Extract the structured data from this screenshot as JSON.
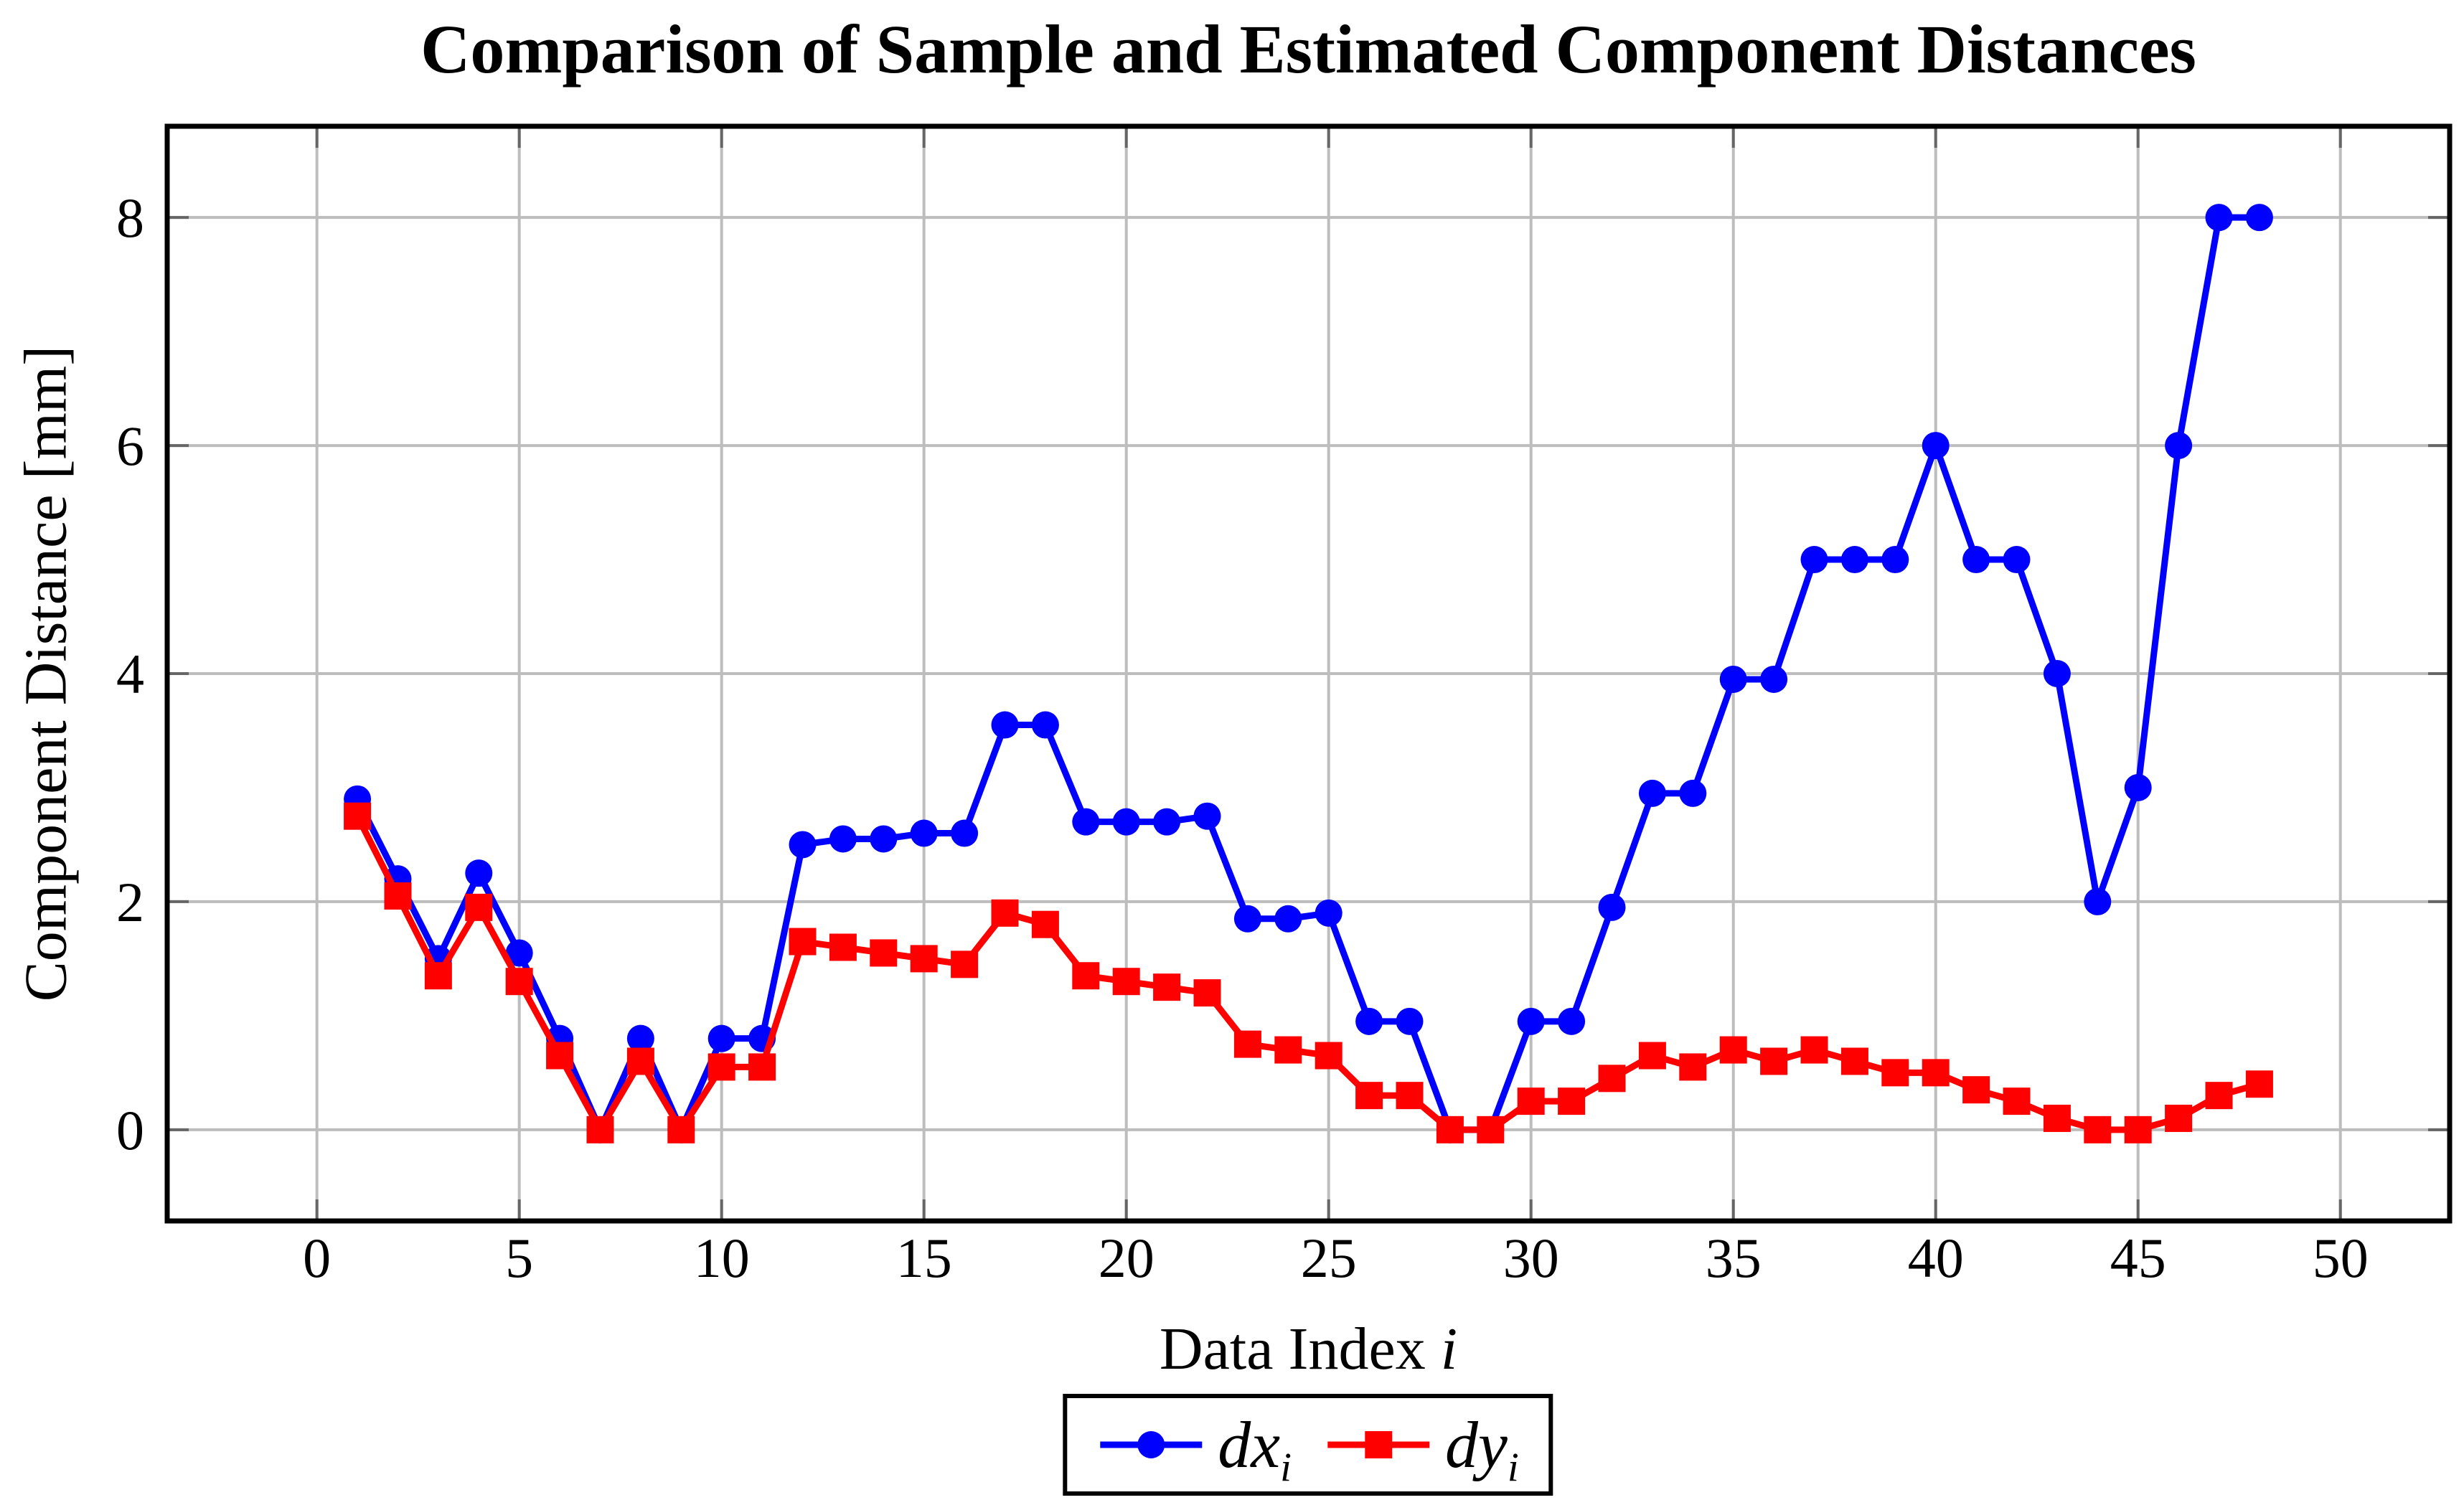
{
  "title": "Comparison of Sample and Estimated Component Distances",
  "axes": {
    "x_label_text": "Data Index",
    "x_label_var": "i",
    "y_label": "Component Distance [mm]"
  },
  "legend": [
    {
      "name": "dx",
      "sub": "i",
      "color": "#0000ff",
      "marker": "circle"
    },
    {
      "name": "dy",
      "sub": "i",
      "color": "#ff0000",
      "marker": "square"
    }
  ],
  "colors": {
    "background": "#ffffff",
    "grid": "#bdbdbd",
    "frame": "#000000",
    "tick": "#666666",
    "blue_series": "#0000ff",
    "red_series": "#ff0000"
  },
  "chart_data": {
    "type": "line",
    "title": "Comparison of Sample and Estimated Component Distances",
    "xlabel": "Data Index i",
    "ylabel": "Component Distance [mm]",
    "grid": true,
    "legend_position": "below",
    "xlim": [
      -3.7,
      52.7
    ],
    "ylim": [
      -0.8,
      8.8
    ],
    "x_ticks": [
      0,
      5,
      10,
      15,
      20,
      25,
      30,
      35,
      40,
      45,
      50
    ],
    "y_ticks": [
      0,
      2,
      4,
      6,
      8
    ],
    "x": [
      1,
      2,
      3,
      4,
      5,
      6,
      7,
      8,
      9,
      10,
      11,
      12,
      13,
      14,
      15,
      16,
      17,
      18,
      19,
      20,
      21,
      22,
      23,
      24,
      25,
      26,
      27,
      28,
      29,
      30,
      31,
      32,
      33,
      34,
      35,
      36,
      37,
      38,
      39,
      40,
      41,
      42,
      43,
      44,
      45,
      46,
      47,
      48
    ],
    "series": [
      {
        "name": "dx_i",
        "color": "#0000ff",
        "marker": "circle",
        "values": [
          2.9,
          2.2,
          1.5,
          2.25,
          1.55,
          0.8,
          0.0,
          0.8,
          0.0,
          0.8,
          0.8,
          2.5,
          2.55,
          2.55,
          2.6,
          2.6,
          3.55,
          3.55,
          2.7,
          2.7,
          2.7,
          2.75,
          1.85,
          1.85,
          1.9,
          0.95,
          0.95,
          0.0,
          0.0,
          0.95,
          0.95,
          1.95,
          2.95,
          2.95,
          3.95,
          3.95,
          5.0,
          5.0,
          5.0,
          6.0,
          5.0,
          5.0,
          4.0,
          2.0,
          3.0,
          6.0,
          8.0,
          8.0
        ]
      },
      {
        "name": "dy_i",
        "color": "#ff0000",
        "marker": "square",
        "values": [
          2.75,
          2.05,
          1.35,
          1.95,
          1.3,
          0.65,
          0.0,
          0.6,
          0.0,
          0.55,
          0.55,
          1.65,
          1.6,
          1.55,
          1.5,
          1.45,
          1.9,
          1.8,
          1.35,
          1.3,
          1.25,
          1.2,
          0.75,
          0.7,
          0.65,
          0.3,
          0.3,
          0.0,
          0.0,
          0.25,
          0.25,
          0.45,
          0.65,
          0.55,
          0.7,
          0.6,
          0.7,
          0.6,
          0.5,
          0.5,
          0.35,
          0.25,
          0.1,
          0.0,
          0.0,
          0.1,
          0.3,
          0.4
        ]
      }
    ]
  }
}
